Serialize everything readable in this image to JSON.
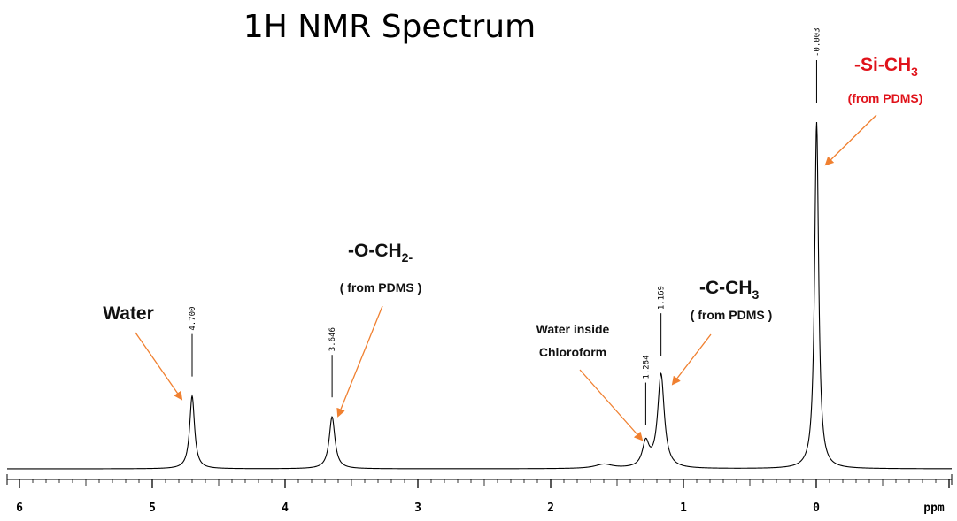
{
  "chart_data": {
    "type": "line",
    "title": "1H NMR Spectrum",
    "xlabel": "ppm",
    "xlim": [
      6.1,
      -1.0
    ],
    "x_reversed": true,
    "grid": false,
    "x_ticks": [
      6,
      5,
      4,
      3,
      2,
      1,
      0
    ],
    "x_tick_labels": [
      "6",
      "5",
      "4",
      "3",
      "2",
      "1",
      "0"
    ],
    "ylim": [
      0,
      1.0
    ],
    "peaks": [
      {
        "shift": 4.7,
        "label": "4.700",
        "height": 0.21,
        "width": 0.022
      },
      {
        "shift": 3.646,
        "label": "3.646",
        "height": 0.15,
        "width": 0.026
      },
      {
        "shift": 1.284,
        "label": "1.284",
        "height": 0.07,
        "width": 0.03
      },
      {
        "shift": 1.169,
        "label": "1.169",
        "height": 0.27,
        "width": 0.03
      },
      {
        "shift": -0.003,
        "label": "-0.003",
        "height": 1.0,
        "width": 0.018
      },
      {
        "shift": 1.6,
        "label": "",
        "height": 0.012,
        "width": 0.08
      }
    ],
    "annotations": [
      {
        "id": "water",
        "lines": [
          "Water"
        ]
      },
      {
        "id": "och2",
        "main": "-O-CH",
        "sub": "2-",
        "note": "( from PDMS )"
      },
      {
        "id": "water-chloroform",
        "lines": [
          "Water inside",
          "Chloroform"
        ]
      },
      {
        "id": "cch3",
        "main": "-C-CH",
        "sub": "3",
        "note": "( from PDMS )"
      },
      {
        "id": "sich3",
        "main": "-Si-CH",
        "sub": "3",
        "note": "(from PDMS)"
      }
    ],
    "colors": {
      "trace": "#000000",
      "arrow": "#f08030",
      "highlight": "#e0121a"
    }
  }
}
